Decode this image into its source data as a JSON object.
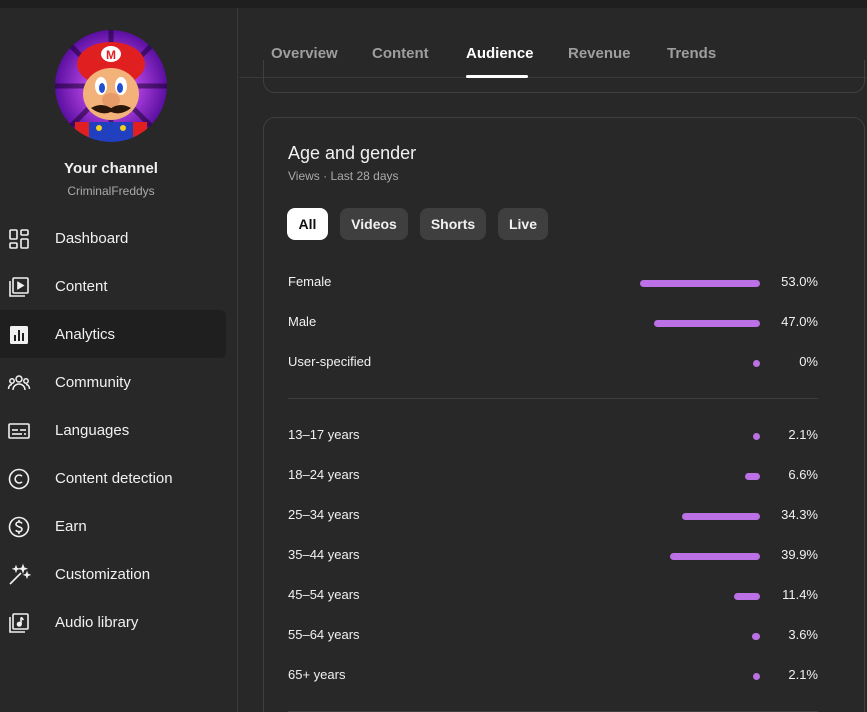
{
  "channel": {
    "title": "Your channel",
    "handle": "CriminalFreddys"
  },
  "sidebar": {
    "items": [
      {
        "label": "Dashboard",
        "icon": "dashboard-icon",
        "active": false
      },
      {
        "label": "Content",
        "icon": "content-icon",
        "active": false
      },
      {
        "label": "Analytics",
        "icon": "analytics-icon",
        "active": true
      },
      {
        "label": "Community",
        "icon": "community-icon",
        "active": false
      },
      {
        "label": "Languages",
        "icon": "languages-icon",
        "active": false
      },
      {
        "label": "Content detection",
        "icon": "copyright-icon",
        "active": false
      },
      {
        "label": "Earn",
        "icon": "dollar-icon",
        "active": false
      },
      {
        "label": "Customization",
        "icon": "magic-wand-icon",
        "active": false
      },
      {
        "label": "Audio library",
        "icon": "audio-library-icon",
        "active": false
      }
    ]
  },
  "tabs": [
    {
      "label": "Overview",
      "active": false
    },
    {
      "label": "Content",
      "active": false
    },
    {
      "label": "Audience",
      "active": true
    },
    {
      "label": "Revenue",
      "active": false
    },
    {
      "label": "Trends",
      "active": false
    }
  ],
  "card": {
    "title": "Age and gender",
    "subtitle": "Views · Last 28 days",
    "chips": [
      {
        "label": "All",
        "active": true
      },
      {
        "label": "Videos",
        "active": false
      },
      {
        "label": "Shorts",
        "active": false
      },
      {
        "label": "Live",
        "active": false
      }
    ],
    "gender": [
      {
        "label": "Female",
        "value": 53.0,
        "display": "53.0%"
      },
      {
        "label": "Male",
        "value": 47.0,
        "display": "47.0%"
      },
      {
        "label": "User-specified",
        "value": 0,
        "display": "0%"
      }
    ],
    "age": [
      {
        "label": "13–17 years",
        "value": 2.1,
        "display": "2.1%"
      },
      {
        "label": "18–24 years",
        "value": 6.6,
        "display": "6.6%"
      },
      {
        "label": "25–34 years",
        "value": 34.3,
        "display": "34.3%"
      },
      {
        "label": "35–44 years",
        "value": 39.9,
        "display": "39.9%"
      },
      {
        "label": "45–54 years",
        "value": 11.4,
        "display": "11.4%"
      },
      {
        "label": "55–64 years",
        "value": 3.6,
        "display": "3.6%"
      },
      {
        "label": "65+ years",
        "value": 2.1,
        "display": "2.1%"
      }
    ]
  },
  "colors": {
    "bar": "#bb71e5",
    "background": "#282828",
    "active_chip": "#ffffff"
  }
}
